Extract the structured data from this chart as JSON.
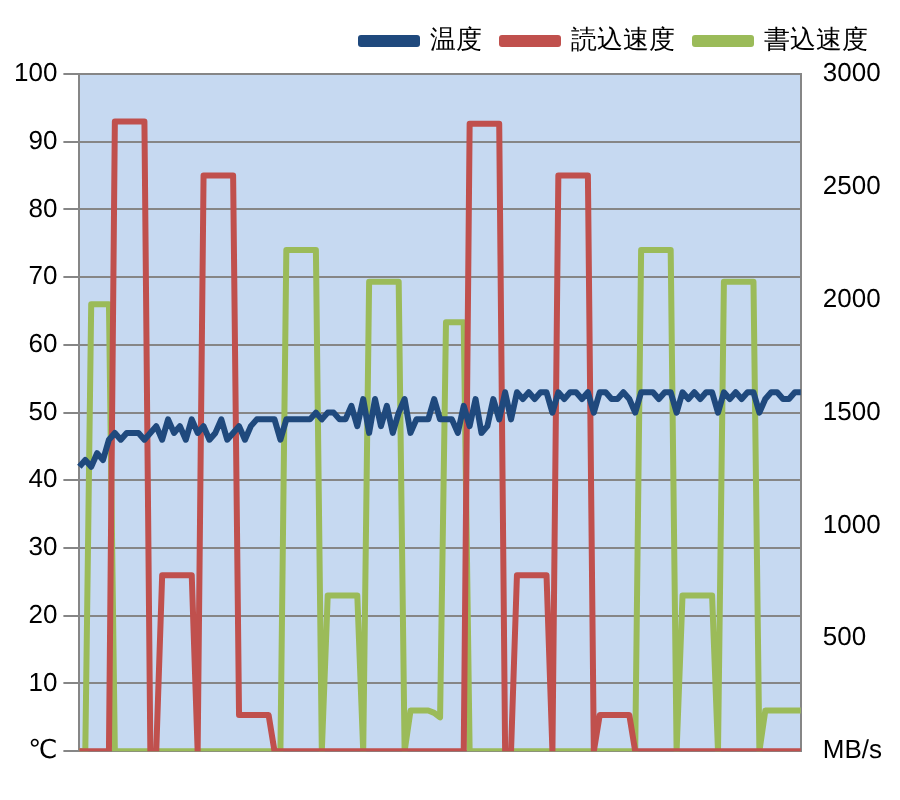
{
  "chart_data": {
    "type": "line",
    "categories": [
      null,
      null,
      null,
      null,
      null,
      null,
      null,
      null,
      null,
      null,
      null,
      null,
      null,
      null,
      null,
      null,
      null,
      null,
      null,
      null,
      null,
      null,
      null,
      null,
      null,
      null,
      null,
      null,
      null,
      null,
      null,
      null,
      null,
      null,
      null,
      null,
      null,
      null,
      null,
      null,
      null,
      null,
      null,
      null,
      null,
      null,
      null,
      null,
      null,
      null,
      null,
      null,
      null,
      null,
      null,
      null,
      null,
      null,
      null,
      null,
      null,
      null,
      null,
      null,
      null,
      null,
      null,
      null,
      null,
      null,
      null,
      null,
      null,
      null,
      null,
      null,
      null,
      null,
      null,
      null,
      null,
      null,
      null,
      null,
      null,
      null,
      null,
      null,
      null,
      null,
      null,
      null,
      null,
      null,
      null,
      null,
      null,
      null,
      null,
      null,
      null,
      null,
      null,
      null,
      null,
      null,
      null,
      null,
      null,
      null,
      null,
      null,
      null,
      null,
      null,
      null,
      null,
      null,
      null,
      null,
      null,
      null,
      null
    ],
    "series": [
      {
        "name": "温度",
        "color": "#1f497d",
        "values": [
          42,
          43,
          42,
          44,
          43,
          46,
          47,
          46,
          47,
          47,
          47,
          46,
          47,
          48,
          46,
          49,
          47,
          48,
          46,
          49,
          47,
          48,
          46,
          47,
          49,
          46,
          47,
          48,
          46,
          48,
          49,
          49,
          49,
          49,
          46,
          49,
          49,
          49,
          49,
          49,
          50,
          49,
          50,
          50,
          49,
          49,
          51,
          48,
          52,
          47,
          52,
          48,
          51,
          47,
          50,
          52,
          47,
          49,
          49,
          49,
          52,
          49,
          49,
          49,
          47,
          51,
          48,
          52,
          47,
          48,
          52,
          49,
          53,
          49,
          53,
          52,
          53,
          52,
          53,
          53,
          50,
          53,
          52,
          53,
          53,
          52,
          53,
          50,
          53,
          53,
          52,
          52,
          53,
          52,
          50,
          53,
          53,
          53,
          52,
          53,
          53,
          50,
          53,
          52,
          53,
          52,
          53,
          53,
          50,
          53,
          52,
          53,
          52,
          53,
          53,
          50,
          52,
          53,
          53,
          52,
          52,
          53,
          53
        ]
      },
      {
        "name": "読込速度",
        "color": "#c0504d",
        "axis": "y2",
        "values": [
          0,
          0,
          0,
          0,
          0,
          0,
          2790,
          2790,
          2790,
          2790,
          2790,
          2790,
          0,
          0,
          780,
          780,
          780,
          780,
          780,
          780,
          0,
          2550,
          2550,
          2550,
          2550,
          2550,
          2550,
          160,
          160,
          160,
          160,
          160,
          160,
          0,
          0,
          0,
          0,
          0,
          0,
          0,
          0,
          0,
          0,
          0,
          0,
          0,
          0,
          0,
          0,
          0,
          0,
          0,
          0,
          0,
          0,
          0,
          0,
          0,
          0,
          0,
          0,
          0,
          0,
          0,
          0,
          0,
          2780,
          2780,
          2780,
          2780,
          2780,
          2780,
          0,
          0,
          780,
          780,
          780,
          780,
          780,
          780,
          0,
          2550,
          2550,
          2550,
          2550,
          2550,
          2550,
          0,
          160,
          160,
          160,
          160,
          160,
          160,
          0,
          0,
          0,
          0,
          0,
          0,
          0,
          0,
          0,
          0,
          0,
          0,
          0,
          0,
          0,
          0,
          0,
          0,
          0,
          0,
          0,
          0,
          0,
          0,
          0,
          0,
          0,
          0,
          0
        ]
      },
      {
        "name": "書込速度",
        "color": "#9bbb59",
        "axis": "y2",
        "values": [
          0,
          0,
          1980,
          1980,
          1980,
          1980,
          0,
          0,
          0,
          0,
          0,
          0,
          0,
          0,
          0,
          0,
          0,
          0,
          0,
          0,
          0,
          0,
          0,
          0,
          0,
          0,
          0,
          0,
          0,
          0,
          0,
          0,
          0,
          0,
          0,
          2220,
          2220,
          2220,
          2220,
          2220,
          2220,
          0,
          690,
          690,
          690,
          690,
          690,
          690,
          0,
          2080,
          2080,
          2080,
          2080,
          2080,
          2080,
          0,
          180,
          180,
          180,
          180,
          170,
          150,
          1900,
          1900,
          1900,
          1900,
          0,
          0,
          0,
          0,
          0,
          0,
          0,
          0,
          0,
          0,
          0,
          0,
          0,
          0,
          0,
          0,
          0,
          0,
          0,
          0,
          0,
          0,
          0,
          0,
          0,
          0,
          0,
          0,
          0,
          2220,
          2220,
          2220,
          2220,
          2220,
          2220,
          0,
          690,
          690,
          690,
          690,
          690,
          690,
          0,
          2080,
          2080,
          2080,
          2080,
          2080,
          2080,
          0,
          180,
          180,
          180,
          180,
          180,
          180,
          180
        ]
      }
    ],
    "ylim": [
      0,
      100
    ],
    "yticks": [
      {
        "value": 0,
        "label": "℃"
      },
      10,
      20,
      30,
      40,
      50,
      60,
      70,
      80,
      90,
      100
    ],
    "y2lim": [
      0,
      3000
    ],
    "y2ticks": [
      {
        "value": 0,
        "label": "MB/s"
      },
      500,
      1000,
      1500,
      2000,
      2500,
      3000
    ],
    "grid": "y",
    "legend": "top right",
    "marker": "none",
    "line_style": "solid"
  }
}
